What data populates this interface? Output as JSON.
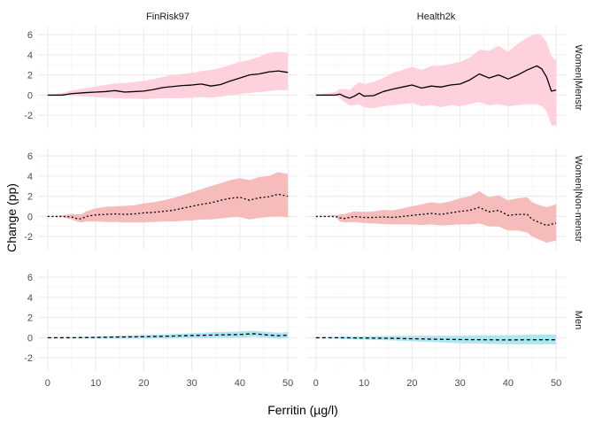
{
  "chart_data": {
    "type": "line",
    "xlabel": "Ferritin (µg/l)",
    "ylabel": "Change (pp)",
    "xlim": [
      -2,
      52
    ],
    "ylim": [
      -3.3,
      6.8
    ],
    "x_ticks": [
      0,
      10,
      20,
      30,
      40,
      50
    ],
    "y_ticks": [
      -2,
      0,
      2,
      4,
      6
    ],
    "grid": true,
    "columns": [
      "FinRisk97",
      "Health2k"
    ],
    "rows": [
      {
        "label": "Women|Menstr",
        "fill": "#ffd1dc",
        "dash": "solid"
      },
      {
        "label": "Women|Non-menstr",
        "fill": "#f6bcbc",
        "dash": "dotted"
      },
      {
        "label": "Men",
        "fill": "#aee6f2",
        "dash": "dashed"
      }
    ],
    "panels": [
      {
        "row": 0,
        "col": 0,
        "x": [
          0,
          3,
          5,
          8,
          10,
          12,
          14,
          16,
          18,
          20,
          22,
          24,
          26,
          28,
          30,
          32,
          34,
          36,
          38,
          40,
          42,
          44,
          46,
          48,
          50
        ],
        "y": [
          0,
          0,
          0.15,
          0.25,
          0.3,
          0.35,
          0.45,
          0.3,
          0.35,
          0.4,
          0.55,
          0.75,
          0.85,
          0.95,
          1.0,
          1.1,
          0.9,
          1.05,
          1.4,
          1.7,
          2.0,
          2.1,
          2.3,
          2.4,
          2.25
        ],
        "lower": [
          0,
          0,
          -0.05,
          -0.15,
          -0.2,
          -0.25,
          -0.3,
          -0.35,
          -0.35,
          -0.4,
          -0.35,
          -0.3,
          -0.3,
          -0.3,
          -0.25,
          -0.2,
          -0.25,
          -0.15,
          0,
          0.1,
          0.2,
          0.3,
          0.4,
          0.5,
          0.5
        ],
        "upper": [
          0,
          0.2,
          0.45,
          0.7,
          0.85,
          1.0,
          1.15,
          1.2,
          1.3,
          1.4,
          1.6,
          1.8,
          2.0,
          2.1,
          2.2,
          2.4,
          2.5,
          2.7,
          3.0,
          3.3,
          3.5,
          3.8,
          4.2,
          4.3,
          4.2
        ]
      },
      {
        "row": 0,
        "col": 1,
        "x": [
          0,
          4,
          5,
          6,
          7,
          8,
          9,
          10,
          12,
          14,
          16,
          18,
          20,
          22,
          24,
          26,
          28,
          30,
          32,
          34,
          36,
          38,
          40,
          42,
          44,
          46,
          47,
          48,
          49,
          50
        ],
        "y": [
          0,
          0,
          0.1,
          -0.15,
          -0.3,
          -0.1,
          0.2,
          -0.1,
          -0.05,
          0.35,
          0.6,
          0.8,
          1.0,
          0.7,
          0.9,
          0.8,
          1.0,
          1.1,
          1.5,
          2.1,
          1.7,
          2.0,
          1.6,
          2.0,
          2.5,
          2.9,
          2.6,
          1.8,
          0.4,
          0.5
        ],
        "lower": [
          0,
          0,
          -0.3,
          -0.7,
          -1.0,
          -1.0,
          -0.9,
          -1.2,
          -1.3,
          -1.1,
          -1.0,
          -0.9,
          -0.8,
          -1.1,
          -1.0,
          -1.2,
          -1.0,
          -1.1,
          -0.9,
          -0.7,
          -1.0,
          -0.9,
          -1.1,
          -1.0,
          -0.9,
          -0.9,
          -1.1,
          -1.6,
          -3.0,
          -3.0
        ],
        "upper": [
          0,
          0.3,
          0.6,
          0.6,
          0.5,
          0.9,
          1.3,
          1.1,
          1.3,
          1.7,
          2.2,
          2.5,
          2.8,
          2.5,
          2.9,
          2.9,
          3.1,
          3.3,
          3.7,
          4.5,
          4.4,
          4.9,
          4.3,
          5.1,
          5.7,
          6.1,
          5.9,
          5.3,
          3.9,
          3.4
        ]
      },
      {
        "row": 1,
        "col": 0,
        "x": [
          0,
          3,
          5,
          6,
          7,
          8,
          10,
          12,
          14,
          16,
          18,
          20,
          22,
          24,
          26,
          28,
          30,
          32,
          34,
          36,
          38,
          40,
          42,
          44,
          46,
          48,
          50
        ],
        "y": [
          0,
          0,
          -0.05,
          -0.2,
          -0.25,
          0,
          0.15,
          0.2,
          0.25,
          0.2,
          0.25,
          0.35,
          0.4,
          0.5,
          0.6,
          0.8,
          1.0,
          1.2,
          1.35,
          1.6,
          1.8,
          1.9,
          1.6,
          1.85,
          1.95,
          2.2,
          2.0
        ],
        "lower": [
          0,
          -0.05,
          -0.3,
          -0.5,
          -0.6,
          -0.5,
          -0.5,
          -0.55,
          -0.55,
          -0.6,
          -0.6,
          -0.6,
          -0.55,
          -0.5,
          -0.5,
          -0.45,
          -0.4,
          -0.3,
          -0.3,
          -0.2,
          -0.1,
          -0.05,
          -0.3,
          -0.15,
          -0.05,
          0,
          -0.1
        ],
        "upper": [
          0,
          0.1,
          0.25,
          0.2,
          0.2,
          0.5,
          0.8,
          0.95,
          1.0,
          1.05,
          1.1,
          1.3,
          1.4,
          1.6,
          1.8,
          2.1,
          2.4,
          2.7,
          3.0,
          3.3,
          3.6,
          3.8,
          3.6,
          3.9,
          4.0,
          4.4,
          4.2
        ]
      },
      {
        "row": 1,
        "col": 1,
        "x": [
          0,
          4,
          5,
          6,
          8,
          10,
          12,
          14,
          16,
          18,
          20,
          22,
          24,
          26,
          28,
          30,
          32,
          34,
          36,
          38,
          40,
          42,
          44,
          45,
          46,
          48,
          50
        ],
        "y": [
          0,
          0,
          -0.15,
          -0.2,
          0,
          -0.1,
          -0.1,
          -0.05,
          -0.1,
          0,
          0.1,
          0.2,
          0.3,
          0.2,
          0.35,
          0.5,
          0.6,
          0.9,
          0.45,
          0.6,
          0.1,
          0.2,
          0.2,
          -0.3,
          -0.5,
          -0.9,
          -0.65
        ],
        "lower": [
          0,
          0,
          -0.5,
          -0.6,
          -0.55,
          -0.65,
          -0.7,
          -0.75,
          -0.8,
          -0.8,
          -0.8,
          -0.85,
          -0.8,
          -0.9,
          -0.85,
          -0.8,
          -0.8,
          -0.7,
          -1.0,
          -1.0,
          -1.4,
          -1.4,
          -1.6,
          -2.0,
          -2.2,
          -2.6,
          -2.4
        ],
        "upper": [
          0,
          0.1,
          0.2,
          0.25,
          0.5,
          0.45,
          0.5,
          0.65,
          0.6,
          0.8,
          1.0,
          1.2,
          1.4,
          1.3,
          1.5,
          1.8,
          2.0,
          2.5,
          1.9,
          2.1,
          1.6,
          1.8,
          1.9,
          1.4,
          1.2,
          0.9,
          1.2
        ]
      },
      {
        "row": 2,
        "col": 0,
        "x": [
          0,
          5,
          10,
          15,
          20,
          25,
          30,
          35,
          40,
          43,
          45,
          48,
          50
        ],
        "y": [
          0,
          0,
          0.03,
          0.07,
          0.1,
          0.15,
          0.22,
          0.27,
          0.32,
          0.4,
          0.3,
          0.2,
          0.25
        ],
        "lower": [
          0,
          -0.05,
          -0.08,
          -0.1,
          -0.1,
          -0.08,
          -0.05,
          -0.02,
          0,
          0.1,
          0,
          -0.1,
          -0.05
        ],
        "upper": [
          0,
          0.05,
          0.12,
          0.2,
          0.27,
          0.35,
          0.45,
          0.55,
          0.62,
          0.7,
          0.6,
          0.5,
          0.55
        ]
      },
      {
        "row": 2,
        "col": 1,
        "x": [
          0,
          5,
          10,
          15,
          20,
          25,
          30,
          35,
          40,
          45,
          50
        ],
        "y": [
          0,
          0,
          -0.03,
          -0.05,
          -0.1,
          -0.15,
          -0.18,
          -0.2,
          -0.22,
          -0.2,
          -0.2
        ],
        "lower": [
          0,
          -0.1,
          -0.18,
          -0.25,
          -0.35,
          -0.45,
          -0.55,
          -0.6,
          -0.65,
          -0.65,
          -0.65
        ],
        "upper": [
          0,
          0.1,
          0.15,
          0.18,
          0.2,
          0.2,
          0.2,
          0.25,
          0.25,
          0.3,
          0.3
        ]
      }
    ]
  }
}
